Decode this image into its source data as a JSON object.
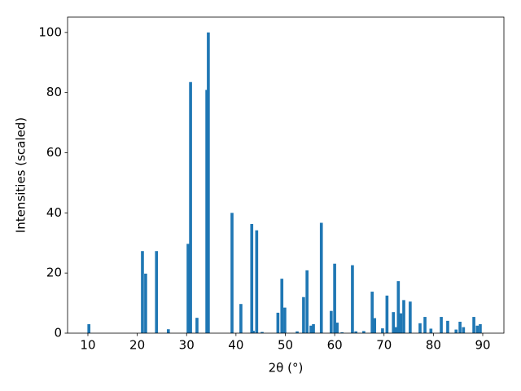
{
  "chart_data": {
    "type": "bar",
    "x_label": "2θ (°)",
    "y_label": "Intensities (scaled)",
    "color": "#1f77b4",
    "x": [
      10.2,
      21.05,
      21.7,
      23.9,
      26.3,
      30.3,
      30.8,
      32.1,
      34.1,
      34.4,
      39.2,
      41.0,
      43.2,
      43.5,
      44.2,
      45.3,
      48.5,
      49.3,
      49.9,
      52.4,
      53.7,
      54.4,
      55.2,
      55.7,
      57.3,
      59.3,
      60.0,
      60.5,
      61.5,
      63.6,
      64.3,
      65.9,
      67.6,
      68.1,
      69.7,
      70.6,
      71.9,
      72.4,
      72.9,
      73.4,
      74.0,
      75.3,
      77.3,
      78.3,
      79.5,
      81.6,
      82.9,
      84.6,
      85.4,
      86.1,
      88.2,
      88.9,
      89.5
    ],
    "values": [
      3,
      27.3,
      19.8,
      27.3,
      1.3,
      29.7,
      83.5,
      5.1,
      80.9,
      100,
      40,
      9.7,
      36.3,
      0.8,
      34.2,
      0.4,
      6.8,
      18.1,
      8.5,
      0.6,
      12,
      20.9,
      2.5,
      3,
      36.7,
      7.4,
      23.1,
      3.5,
      0.3,
      22.6,
      0.6,
      0.7,
      13.8,
      5,
      1.6,
      12.5,
      7,
      2,
      17.3,
      6.6,
      11,
      10.5,
      3.3,
      5.4,
      1.5,
      5.4,
      4.1,
      1.2,
      3.8,
      2,
      5.4,
      2.5,
      3
    ],
    "xlim": [
      5.88,
      94.29
    ],
    "ylim": [
      0,
      105.1
    ],
    "xticks": [
      10,
      20,
      30,
      40,
      50,
      60,
      70,
      80,
      90
    ],
    "yticks": [
      0,
      20,
      40,
      60,
      80,
      100
    ]
  }
}
